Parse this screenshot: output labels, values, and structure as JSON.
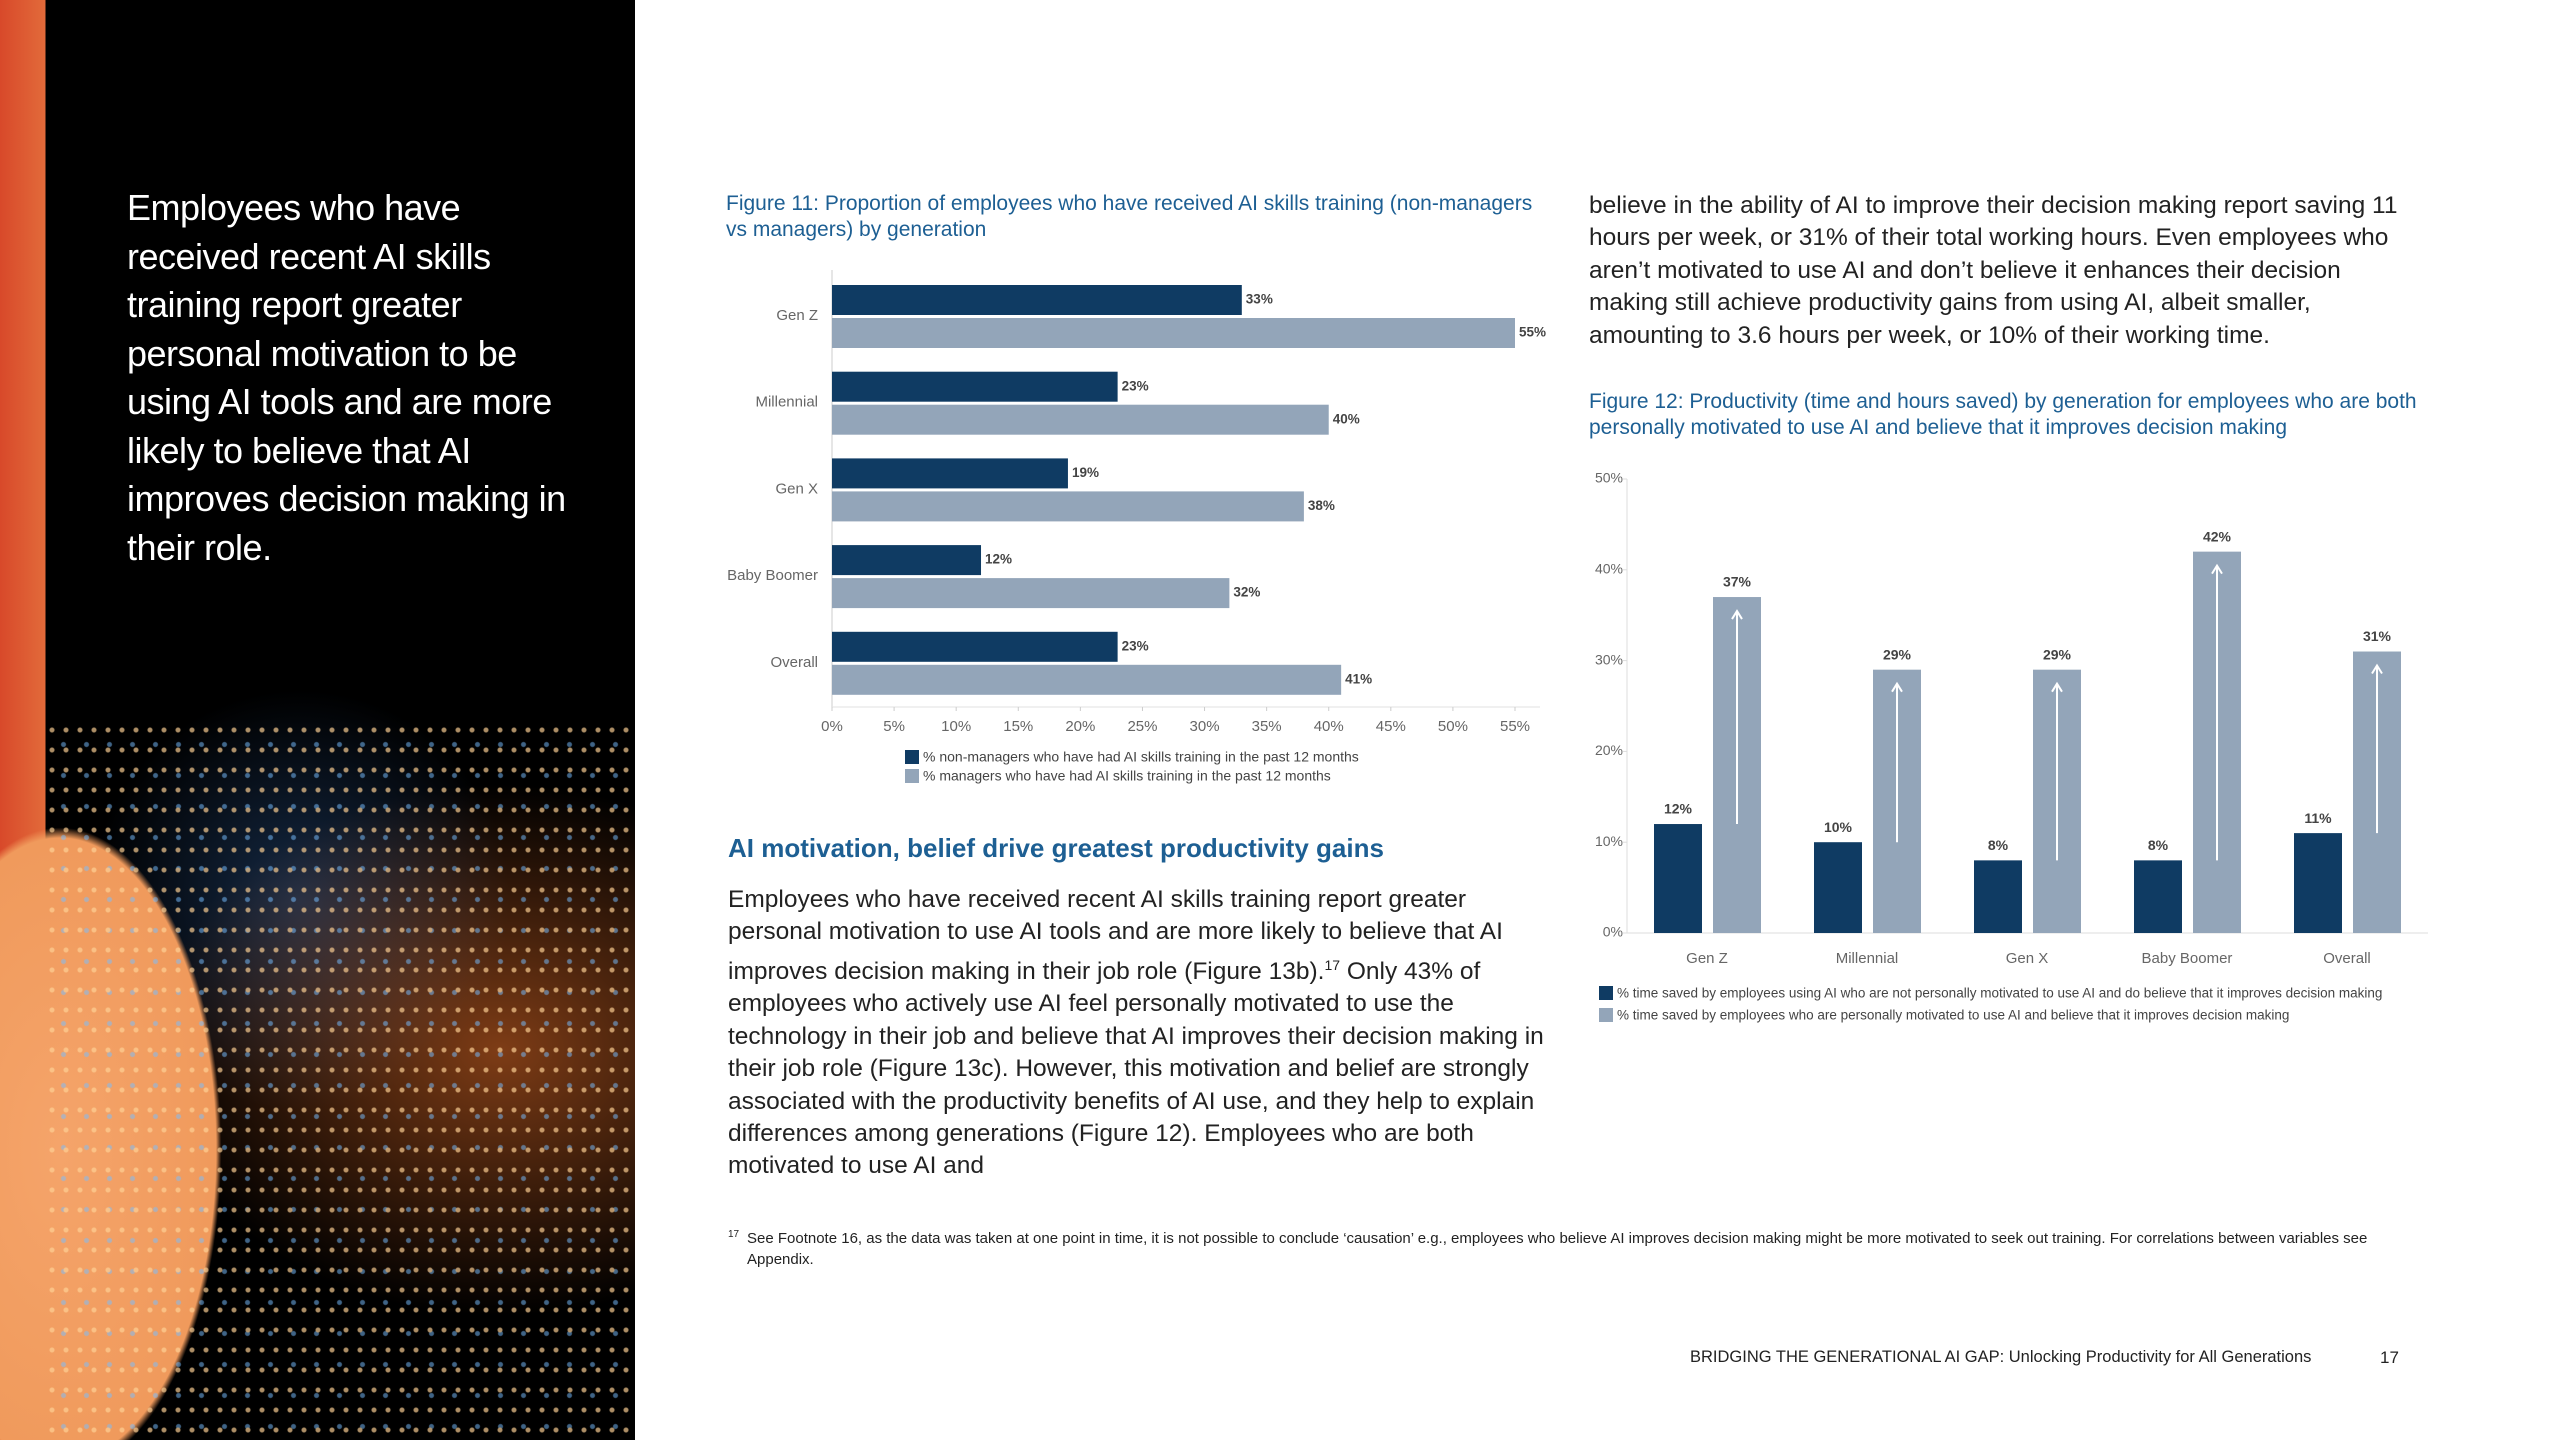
{
  "sidebar": {
    "quote": "Employees who have received recent AI skills training report greater personal motivation to be using AI tools and are more likely to believe that AI improves decision making in their role."
  },
  "chart_data": [
    {
      "type": "bar",
      "orientation": "horizontal",
      "title": "Figure 11: Proportion of employees who have received AI skills training (non-managers vs managers) by generation",
      "categories": [
        "Gen Z",
        "Millennial",
        "Gen X",
        "Baby Boomer",
        "Overall"
      ],
      "series": [
        {
          "name": "% non-managers who have had AI skills training in the past 12 months",
          "color": "#0f3b63",
          "values": [
            33,
            23,
            19,
            12,
            23
          ],
          "value_labels": [
            "33%",
            "23%",
            "19%",
            "12%",
            "23%"
          ]
        },
        {
          "name": "% managers who have had AI skills training in the past 12 months",
          "color": "#93a5b9",
          "values": [
            55,
            40,
            38,
            32,
            41
          ],
          "value_labels": [
            "55%",
            "40%",
            "38%",
            "32%",
            "41%"
          ]
        }
      ],
      "xlim": [
        0,
        55
      ],
      "xticks": [
        {
          "value": 0,
          "label": "0%"
        },
        {
          "value": 5,
          "label": "5%"
        },
        {
          "value": 10,
          "label": "10%"
        },
        {
          "value": 15,
          "label": "15%"
        },
        {
          "value": 20,
          "label": "20%"
        },
        {
          "value": 25,
          "label": "25%"
        },
        {
          "value": 30,
          "label": "30%"
        },
        {
          "value": 35,
          "label": "35%"
        },
        {
          "value": 40,
          "label": "40%"
        },
        {
          "value": 45,
          "label": "45%"
        },
        {
          "value": 50,
          "label": "50%"
        },
        {
          "value": 55,
          "label": "55%"
        }
      ]
    },
    {
      "type": "bar",
      "orientation": "vertical",
      "title": "Figure 12: Productivity (time and hours saved) by generation for employees who are both personally motivated to use AI and believe that it improves decision making",
      "categories": [
        "Gen Z",
        "Millennial",
        "Gen X",
        "Baby Boomer",
        "Overall"
      ],
      "series": [
        {
          "name": "% time saved by employees using AI who are not personally motivated to use AI and do believe that it improves decision making",
          "color": "#0f3b63",
          "values": [
            12,
            10,
            8,
            8,
            11
          ],
          "value_labels": [
            "12%",
            "10%",
            "8%",
            "8%",
            "11%"
          ]
        },
        {
          "name": "% time saved by employees who are personally motivated to use AI and believe that it improves decision making",
          "color": "#93a5b9",
          "values": [
            37,
            29,
            29,
            42,
            31
          ],
          "value_labels": [
            "37%",
            "29%",
            "29%",
            "42%",
            "31%"
          ]
        }
      ],
      "ylim": [
        0,
        50
      ],
      "yticks": [
        {
          "value": 0,
          "label": "0%"
        },
        {
          "value": 10,
          "label": "10%"
        },
        {
          "value": 20,
          "label": "20%"
        },
        {
          "value": 30,
          "label": "30%"
        },
        {
          "value": 40,
          "label": "40%"
        },
        {
          "value": 50,
          "label": "50%"
        }
      ]
    }
  ],
  "section": {
    "heading": "AI motivation, belief drive greatest productivity gains",
    "paragraph_parts": [
      "Employees who have received recent AI skills training report greater personal motivation to use AI tools and are more likely to believe that AI improves decision making in their job role (Figure 13b).",
      "17",
      " Only 43% of employees who actively use AI feel personally motivated to use the technology in their job and believe that AI improves their decision making in their job role (Figure 13c). However, this motivation and belief are strongly associated with the productivity benefits of AI use, and they help to explain differences among generations (Figure 12). Employees who are both motivated to use AI and"
    ]
  },
  "right_column": {
    "paragraph": "believe in the ability of AI to improve their decision making report saving 11 hours per week, or 31% of their total working hours. Even employees who aren’t motivated to use AI and don’t believe it enhances their decision making still achieve productivity gains from using AI, albeit smaller, amounting to 3.6 hours per week, or 10% of their working time."
  },
  "footnote": {
    "marker": "17",
    "text": "See Footnote 16, as the data was taken at one point in time, it is not possible to conclude ‘causation’ e.g., employees who believe AI improves decision making might be more motivated to seek out training. For correlations between variables see Appendix."
  },
  "footer": {
    "title": "BRIDGING THE GENERATIONAL AI GAP: Unlocking Productivity for All Generations",
    "page": "17"
  }
}
